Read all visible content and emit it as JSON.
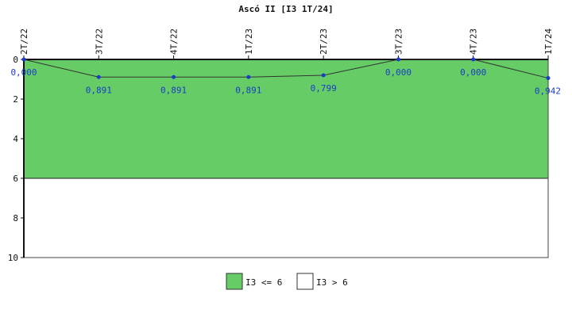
{
  "chart_data": {
    "type": "line",
    "title": "Ascó II [I3 1T/24]",
    "categories": [
      "2T/22",
      "3T/22",
      "4T/22",
      "1T/23",
      "2T/23",
      "3T/23",
      "4T/23",
      "1T/24"
    ],
    "series": [
      {
        "values": [
          0.0,
          0.891,
          0.891,
          0.891,
          0.799,
          0.0,
          0.0,
          0.942
        ],
        "labels": [
          "0,000",
          "0,891",
          "0,891",
          "0,891",
          "0,799",
          "0,000",
          "0,000",
          "0,942"
        ],
        "color": "#1a3cc8",
        "line_color": "#333333"
      }
    ],
    "y_axis": {
      "range": [
        0,
        10
      ],
      "inverted": true,
      "ticks": [
        0,
        2,
        4,
        6,
        8,
        10
      ],
      "tick_labels": [
        "0",
        "2",
        "4",
        "6",
        "8",
        "10"
      ]
    },
    "x_axis_position": "top",
    "grid": false,
    "bands": [
      {
        "from": 0,
        "to": 6,
        "color": "#66cc66",
        "label": "I3 <= 6"
      },
      {
        "from": 6,
        "to": 10,
        "color": "#ffffff",
        "label": "I3 > 6"
      }
    ],
    "legend": {
      "position": "bottom-center",
      "items": [
        "I3 <= 6",
        "I3 > 6"
      ]
    }
  }
}
